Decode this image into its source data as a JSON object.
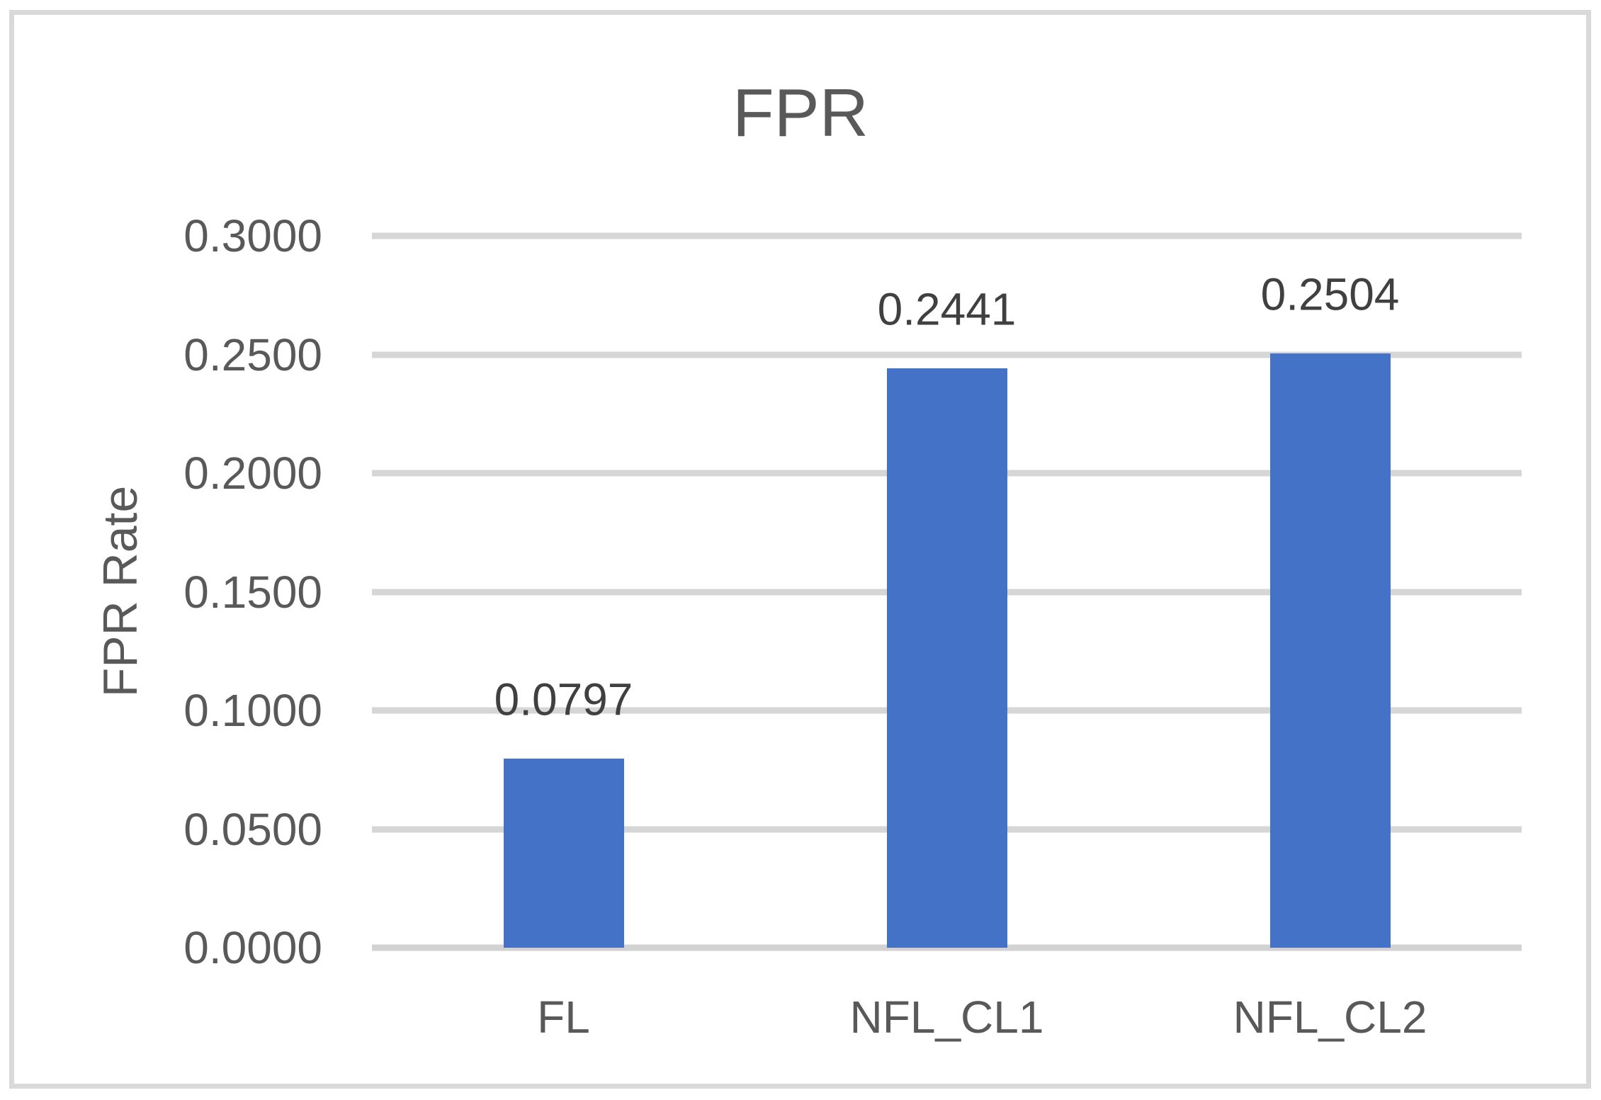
{
  "chart": {
    "title": "FPR",
    "y_axis_title": "FPR Rate"
  },
  "chart_data": {
    "type": "bar",
    "title": "FPR",
    "xlabel": "",
    "ylabel": "FPR Rate",
    "categories": [
      "FL",
      "NFL_CL1",
      "NFL_CL2"
    ],
    "values": [
      0.0797,
      0.2441,
      0.2504
    ],
    "data_labels": [
      "0.0797",
      "0.2441",
      "0.2504"
    ],
    "ylim": [
      0.0,
      0.3
    ],
    "ytick_step": 0.05,
    "ytick_labels": [
      "0.0000",
      "0.0500",
      "0.1000",
      "0.1500",
      "0.2000",
      "0.2500",
      "0.3000"
    ],
    "grid": true,
    "legend": false,
    "colors": {
      "bar_fill": "#4472C6",
      "text": "#595959",
      "data_label_text": "#404040",
      "gridline": "#d6d6d6",
      "axis_line": "#d2d2d2",
      "border": "#d9d9d9"
    }
  }
}
